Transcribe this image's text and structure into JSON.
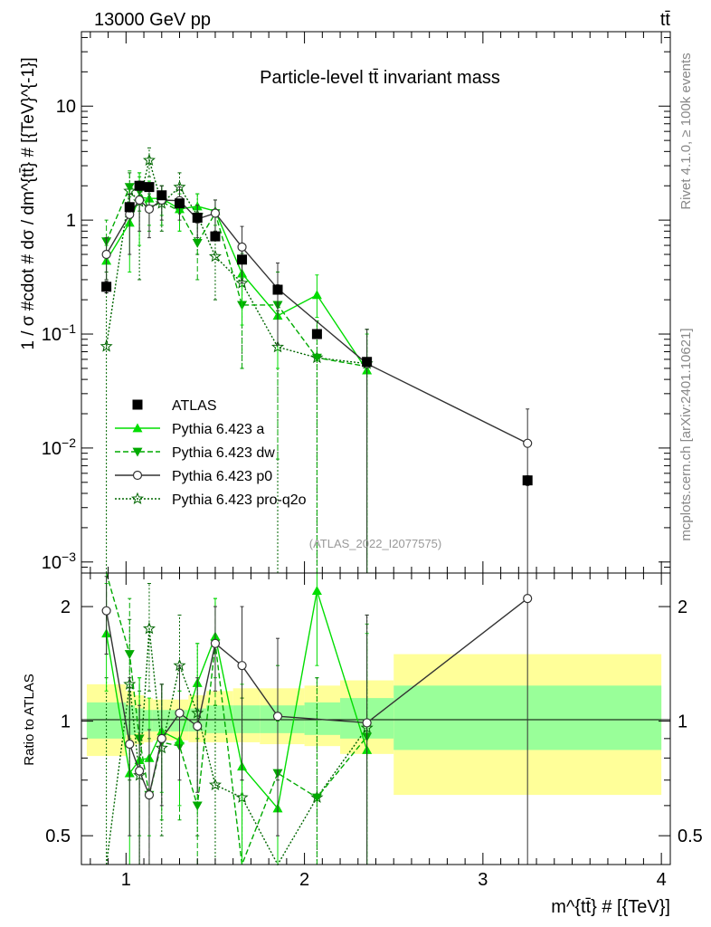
{
  "header": {
    "left": "13000 GeV pp",
    "right": "tt̄"
  },
  "side_labels": {
    "rivet": "Rivet 4.1.0, ≥ 100k events",
    "mcplots": "mcplots.cern.ch [arXiv:2401.10621]"
  },
  "analysis_id": "(ATLAS_2022_I2077575)",
  "colors": {
    "atlas": "#000000",
    "pythia_a": "#00dd00",
    "pythia_dw": "#00aa00",
    "pythia_p0": "#333333",
    "pythia_proq2o": "#006600",
    "band_outer": "#ffff99",
    "band_inner": "#99ff99"
  },
  "chart_data": [
    {
      "type": "line",
      "panel": "main",
      "title": "Particle-level tt̄ invariant mass",
      "xlabel": "m^{tt̄} # [{TeV}]",
      "ylabel": "1 / σ #cdot # dσ / dm^{tt̄} # [{TeV}^{-1}]",
      "yscale": "log",
      "xlim": [
        0.75,
        4.05
      ],
      "ylim": [
        0.0008,
        45
      ],
      "y_ticks": [
        {
          "value": 0.001,
          "base": "10",
          "exp": "−3"
        },
        {
          "value": 0.01,
          "base": "10",
          "exp": "−2"
        },
        {
          "value": 0.1,
          "base": "10",
          "exp": "−1"
        },
        {
          "value": 1,
          "base": "1",
          "exp": ""
        },
        {
          "value": 10,
          "base": "10",
          "exp": ""
        }
      ],
      "x_ticks": [
        {
          "value": 1,
          "label": "1"
        },
        {
          "value": 2,
          "label": "2"
        },
        {
          "value": 3,
          "label": "3"
        },
        {
          "value": 4,
          "label": "4"
        }
      ],
      "bin_edges": [
        0.75,
        0.95,
        1.0,
        1.05,
        1.1,
        1.15,
        1.25,
        1.35,
        1.45,
        1.6,
        1.75,
        2.0,
        2.2,
        2.5,
        4.0
      ],
      "series": [
        {
          "name": "ATLAS",
          "style": "atlas",
          "x": [
            0.89,
            1.02,
            1.075,
            1.13,
            1.2,
            1.3,
            1.4,
            1.5,
            1.65,
            1.85,
            2.07,
            2.35,
            3.25
          ],
          "y": [
            0.26,
            1.3,
            2.0,
            1.95,
            1.65,
            1.4,
            1.05,
            0.72,
            0.45,
            0.245,
            0.1,
            0.057,
            0.0052
          ],
          "yerr": [
            0.03,
            0.12,
            0.15,
            0.15,
            0.12,
            0.1,
            0.08,
            0.05,
            0.03,
            0.015,
            0.007,
            0.004,
            0.0005
          ]
        },
        {
          "name": "Pythia 6.423 a",
          "style": "pythia_a",
          "x": [
            0.89,
            1.02,
            1.075,
            1.13,
            1.2,
            1.3,
            1.4,
            1.5,
            1.65,
            1.85,
            2.07,
            2.35
          ],
          "y": [
            0.44,
            0.95,
            1.58,
            1.55,
            1.55,
            1.25,
            1.32,
            1.2,
            0.34,
            0.145,
            0.22,
            0.048
          ],
          "ylo": [
            0.3,
            0.35,
            0.6,
            0.9,
            1.1,
            0.8,
            0.95,
            0.9,
            0.12,
            0.05,
            0.14,
            0.0008
          ],
          "yhi": [
            0.6,
            1.6,
            2.6,
            2.2,
            2.0,
            1.7,
            1.7,
            1.5,
            0.56,
            0.24,
            0.33,
            0.1
          ]
        },
        {
          "name": "Pythia 6.423 dw",
          "style": "pythia_dw",
          "x": [
            0.89,
            1.02,
            1.075,
            1.13,
            1.2,
            1.3,
            1.4,
            1.5,
            1.65,
            1.85,
            2.07,
            2.35
          ],
          "y": [
            0.65,
            1.95,
            1.8,
            1.25,
            1.45,
            1.2,
            0.63,
            1.15,
            0.18,
            0.18,
            0.062,
            0.052
          ],
          "ylo": [
            0.3,
            1.2,
            1.2,
            0.8,
            0.9,
            0.8,
            0.3,
            0.8,
            0.05,
            0.008,
            0.0008,
            0.0008
          ],
          "yhi": [
            1.0,
            2.7,
            2.4,
            1.7,
            2.0,
            1.6,
            0.96,
            1.5,
            0.31,
            0.35,
            0.13,
            0.11
          ]
        },
        {
          "name": "Pythia 6.423 p0",
          "style": "pythia_p0",
          "x": [
            0.89,
            1.02,
            1.075,
            1.13,
            1.2,
            1.3,
            1.4,
            1.5,
            1.65,
            1.85,
            2.35,
            3.25
          ],
          "y": [
            0.5,
            1.12,
            1.5,
            1.25,
            1.5,
            1.48,
            1.02,
            1.15,
            0.58,
            0.25,
            0.055,
            0.011
          ],
          "ylo": [
            0.3,
            0.5,
            0.8,
            0.7,
            1.0,
            1.0,
            0.7,
            0.8,
            0.28,
            0.08,
            0.0008,
            0.0008
          ],
          "yhi": [
            0.7,
            1.7,
            2.2,
            1.8,
            2.0,
            1.96,
            1.35,
            1.5,
            0.88,
            0.42,
            0.11,
            0.022
          ]
        },
        {
          "name": "Pythia 6.423 pro-q2o",
          "style": "pythia_proq2o",
          "x": [
            0.89,
            1.02,
            1.075,
            1.13,
            1.2,
            1.3,
            1.4,
            1.5,
            1.65,
            1.85,
            2.07,
            2.35
          ],
          "y": [
            0.078,
            1.8,
            1.45,
            3.35,
            1.4,
            1.95,
            1.1,
            0.48,
            0.28,
            0.077,
            0.062,
            0.055
          ],
          "ylo": [
            0.0008,
            0.9,
            0.3,
            2.4,
            0.8,
            1.2,
            0.5,
            0.2,
            0.05,
            0.0008,
            0.0008,
            0.0008
          ],
          "yhi": [
            0.35,
            2.6,
            2.6,
            4.3,
            2.0,
            2.6,
            1.7,
            0.76,
            0.51,
            0.16,
            0.13,
            0.11
          ]
        }
      ],
      "legend": [
        {
          "label": "ATLAS",
          "style": "atlas"
        },
        {
          "label": "Pythia 6.423 a",
          "style": "pythia_a"
        },
        {
          "label": "Pythia 6.423 dw",
          "style": "pythia_dw"
        },
        {
          "label": "Pythia 6.423 p0",
          "style": "pythia_p0"
        },
        {
          "label": "Pythia 6.423 pro-q2o",
          "style": "pythia_proq2o"
        }
      ]
    },
    {
      "type": "line",
      "panel": "ratio",
      "ylabel": "Ratio to ATLAS",
      "yscale": "log",
      "xlim": [
        0.75,
        4.05
      ],
      "ylim": [
        0.42,
        2.45
      ],
      "y_ticks": [
        {
          "value": 0.5,
          "label": "0.5"
        },
        {
          "value": 1,
          "label": "1"
        },
        {
          "value": 2,
          "label": "2"
        }
      ],
      "bands": [
        {
          "x0": 0.78,
          "x1": 1.0,
          "outer": [
            0.81,
            1.25
          ],
          "inner": [
            0.9,
            1.12
          ]
        },
        {
          "x0": 1.0,
          "x1": 1.05,
          "outer": [
            0.86,
            1.2
          ],
          "inner": [
            0.92,
            1.1
          ]
        },
        {
          "x0": 1.05,
          "x1": 1.1,
          "outer": [
            0.87,
            1.17
          ],
          "inner": [
            0.93,
            1.08
          ]
        },
        {
          "x0": 1.1,
          "x1": 1.15,
          "outer": [
            0.88,
            1.15
          ],
          "inner": [
            0.94,
            1.07
          ]
        },
        {
          "x0": 1.15,
          "x1": 1.25,
          "outer": [
            0.89,
            1.14
          ],
          "inner": [
            0.94,
            1.07
          ]
        },
        {
          "x0": 1.25,
          "x1": 1.35,
          "outer": [
            0.89,
            1.14
          ],
          "inner": [
            0.94,
            1.07
          ]
        },
        {
          "x0": 1.35,
          "x1": 1.45,
          "outer": [
            0.88,
            1.17
          ],
          "inner": [
            0.94,
            1.08
          ]
        },
        {
          "x0": 1.45,
          "x1": 1.6,
          "outer": [
            0.88,
            1.2
          ],
          "inner": [
            0.93,
            1.1
          ]
        },
        {
          "x0": 1.6,
          "x1": 1.75,
          "outer": [
            0.88,
            1.22
          ],
          "inner": [
            0.93,
            1.1
          ]
        },
        {
          "x0": 1.75,
          "x1": 2.0,
          "outer": [
            0.87,
            1.22
          ],
          "inner": [
            0.93,
            1.1
          ]
        },
        {
          "x0": 2.0,
          "x1": 2.2,
          "outer": [
            0.86,
            1.24
          ],
          "inner": [
            0.92,
            1.12
          ]
        },
        {
          "x0": 2.2,
          "x1": 2.5,
          "outer": [
            0.82,
            1.28
          ],
          "inner": [
            0.9,
            1.15
          ]
        },
        {
          "x0": 2.5,
          "x1": 4.0,
          "outer": [
            0.64,
            1.5
          ],
          "inner": [
            0.84,
            1.24
          ]
        }
      ],
      "series": [
        {
          "name": "Pythia 6.423 a",
          "style": "pythia_a",
          "x": [
            0.89,
            1.02,
            1.075,
            1.13,
            1.2,
            1.3,
            1.4,
            1.5,
            1.65,
            1.85,
            2.07,
            2.35
          ],
          "y": [
            1.7,
            0.73,
            0.79,
            0.8,
            0.94,
            0.89,
            1.26,
            1.67,
            0.76,
            0.59,
            2.2,
            0.84
          ],
          "ylo": [
            1.2,
            0.4,
            0.35,
            0.5,
            0.65,
            0.6,
            0.9,
            1.3,
            0.3,
            0.2,
            1.4,
            0.1
          ],
          "yhi": [
            2.3,
            1.25,
            1.3,
            1.15,
            1.25,
            1.2,
            1.6,
            2.1,
            1.25,
            1.0,
            3.0,
            1.7
          ]
        },
        {
          "name": "Pythia 6.423 dw",
          "style": "pythia_dw",
          "x": [
            0.89,
            1.02,
            1.075,
            1.13,
            1.2,
            1.3,
            1.4,
            1.5,
            1.65,
            1.85,
            2.07,
            2.35
          ],
          "y": [
            2.5,
            1.5,
            0.9,
            0.64,
            0.88,
            0.86,
            0.6,
            1.6,
            0.4,
            0.73,
            0.63,
            0.91
          ],
          "ylo": [
            1.5,
            0.9,
            0.5,
            0.35,
            0.55,
            0.55,
            0.3,
            1.1,
            0.1,
            0.1,
            0.1,
            0.1
          ],
          "yhi": [
            3.5,
            2.1,
            1.3,
            0.9,
            1.25,
            1.2,
            0.9,
            2.1,
            0.7,
            1.4,
            1.3,
            1.8
          ]
        },
        {
          "name": "Pythia 6.423 p0",
          "style": "pythia_p0",
          "x": [
            0.89,
            1.02,
            1.075,
            1.13,
            1.2,
            1.3,
            1.4,
            1.5,
            1.65,
            1.85,
            2.35,
            3.25
          ],
          "y": [
            1.95,
            0.87,
            0.74,
            0.64,
            0.9,
            1.05,
            0.97,
            1.6,
            1.4,
            1.03,
            0.99,
            2.1
          ],
          "ylo": [
            1.5,
            0.5,
            0.4,
            0.35,
            0.6,
            0.7,
            0.65,
            1.2,
            0.7,
            0.5,
            0.1,
            0.1
          ],
          "yhi": [
            2.4,
            1.3,
            1.1,
            0.95,
            1.25,
            1.4,
            1.3,
            2.0,
            2.0,
            1.65,
            1.9,
            3.5
          ]
        },
        {
          "name": "Pythia 6.423 pro-q2o",
          "style": "pythia_proq2o",
          "x": [
            0.89,
            1.02,
            1.075,
            1.13,
            1.2,
            1.3,
            1.4,
            1.5,
            1.65,
            1.85,
            2.07,
            2.35
          ],
          "y": [
            0.3,
            1.25,
            0.72,
            1.75,
            0.85,
            1.4,
            1.05,
            0.68,
            0.63,
            0.32,
            0.63,
            0.96
          ],
          "ylo": [
            0.1,
            0.7,
            0.3,
            1.2,
            0.5,
            0.9,
            0.5,
            0.3,
            0.15,
            0.1,
            0.1,
            0.1
          ],
          "yhi": [
            1.3,
            1.85,
            1.2,
            2.3,
            1.25,
            1.9,
            1.6,
            1.1,
            1.15,
            0.7,
            1.3,
            1.9
          ]
        }
      ]
    }
  ]
}
